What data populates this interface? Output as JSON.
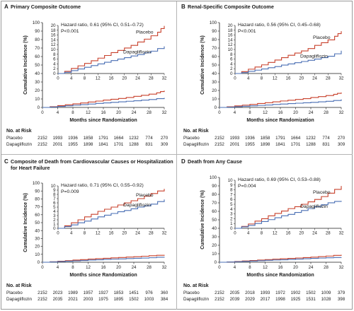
{
  "chart_data": [
    {
      "type": "line",
      "panel_letter": "A",
      "title_lines": [
        "Primary Composite Outcome"
      ],
      "annotation": [
        "Hazard ratio, 0.61 (95% CI, 0.51–0.72)",
        "P<0.001"
      ],
      "xlabel": "Months since Randomization",
      "ylabel": "Cumulative Incidence (%)",
      "xlim": [
        0,
        32
      ],
      "xticks": [
        "0",
        "4",
        "8",
        "12",
        "16",
        "20",
        "24",
        "28",
        "32"
      ],
      "main_ylim": [
        0,
        100
      ],
      "main_yticks": [
        "0",
        "10",
        "20",
        "30",
        "40",
        "50",
        "60",
        "70",
        "80",
        "90",
        "100"
      ],
      "inset_ylim": [
        0,
        20
      ],
      "inset_yticks": [
        "0",
        "2",
        "4",
        "6",
        "8",
        "10",
        "12",
        "14",
        "16",
        "18",
        "20"
      ],
      "series": [
        {
          "name": "Placebo",
          "color": "#c8402b",
          "x": [
            0,
            2,
            4,
            6,
            8,
            10,
            12,
            14,
            16,
            18,
            20,
            22,
            24,
            26,
            28,
            30,
            31,
            32
          ],
          "y": [
            0,
            0.9,
            2.1,
            3.2,
            4.2,
            5.3,
            6.4,
            7.5,
            8.7,
            9.6,
            10.6,
            11.7,
            13.1,
            14.3,
            15.7,
            17.2,
            18.7,
            19.8
          ]
        },
        {
          "name": "Dapagliflozin",
          "color": "#4a6fb4",
          "x": [
            0,
            2,
            4,
            6,
            8,
            10,
            12,
            14,
            16,
            18,
            20,
            22,
            24,
            26,
            28,
            30,
            32
          ],
          "y": [
            0,
            0.5,
            1.2,
            1.9,
            2.6,
            3.3,
            4.0,
            4.7,
            5.4,
            6.0,
            6.6,
            7.3,
            7.9,
            8.6,
            9.3,
            10.4,
            11.3
          ]
        }
      ],
      "number_at_risk": {
        "heading": "No. at Risk",
        "rows": [
          {
            "group": "Placebo",
            "values": [
              "2152",
              "1993",
              "1936",
              "1858",
              "1791",
              "1664",
              "1232",
              "774",
              "270"
            ]
          },
          {
            "group": "Dapagliflozin",
            "values": [
              "2152",
              "2001",
              "1955",
              "1898",
              "1841",
              "1701",
              "1288",
              "831",
              "309"
            ]
          }
        ]
      }
    },
    {
      "type": "line",
      "panel_letter": "B",
      "title_lines": [
        "Renal-Specific Composite Outcome"
      ],
      "annotation": [
        "Hazard ratio, 0.56 (95% CI, 0.45–0.68)",
        "P<0.001"
      ],
      "xlabel": "Months since Randomization",
      "ylabel": "Cumulative Incidence (%)",
      "xlim": [
        0,
        32
      ],
      "xticks": [
        "0",
        "4",
        "8",
        "12",
        "16",
        "20",
        "24",
        "28",
        "32"
      ],
      "main_ylim": [
        0,
        100
      ],
      "main_yticks": [
        "0",
        "10",
        "20",
        "30",
        "40",
        "50",
        "60",
        "70",
        "80",
        "90",
        "100"
      ],
      "inset_ylim": [
        0,
        20
      ],
      "inset_yticks": [
        "0",
        "2",
        "4",
        "6",
        "8",
        "10",
        "12",
        "14",
        "16",
        "18",
        "20"
      ],
      "series": [
        {
          "name": "Placebo",
          "color": "#c8402b",
          "x": [
            0,
            2,
            4,
            6,
            8,
            10,
            12,
            14,
            16,
            18,
            20,
            22,
            24,
            26,
            28,
            30,
            31,
            32
          ],
          "y": [
            0,
            0.8,
            1.8,
            2.7,
            3.6,
            4.6,
            5.6,
            6.6,
            7.6,
            8.5,
            9.4,
            10.4,
            11.7,
            12.8,
            14.0,
            15.5,
            16.6,
            17.6
          ]
        },
        {
          "name": "Dapagliflozin",
          "color": "#4a6fb4",
          "x": [
            0,
            2,
            4,
            6,
            8,
            10,
            12,
            14,
            16,
            18,
            20,
            22,
            24,
            26,
            28,
            30,
            32
          ],
          "y": [
            0,
            0.4,
            0.9,
            1.4,
            1.9,
            2.4,
            2.9,
            3.5,
            4.0,
            4.5,
            5.0,
            5.5,
            6.0,
            6.6,
            7.2,
            8.2,
            9.5
          ]
        }
      ],
      "number_at_risk": {
        "heading": "No. at Risk",
        "rows": [
          {
            "group": "Placebo",
            "values": [
              "2152",
              "1993",
              "1936",
              "1858",
              "1791",
              "1664",
              "1232",
              "774",
              "270"
            ]
          },
          {
            "group": "Dapagliflozin",
            "values": [
              "2152",
              "2001",
              "1955",
              "1898",
              "1841",
              "1701",
              "1288",
              "831",
              "309"
            ]
          }
        ]
      }
    },
    {
      "type": "line",
      "panel_letter": "C",
      "title_lines": [
        "Composite of Death from Cardiovascular Causes or Hospitalization",
        "for Heart Failure"
      ],
      "annotation": [
        "Hazard ratio, 0.71 (95% CI, 0.55–0.92)",
        "P=0.009"
      ],
      "xlabel": "Months since Randomization",
      "ylabel": "Cumulative Incidence (%)",
      "xlim": [
        0,
        32
      ],
      "xticks": [
        "0",
        "4",
        "8",
        "12",
        "16",
        "20",
        "24",
        "28",
        "32"
      ],
      "main_ylim": [
        0,
        100
      ],
      "main_yticks": [
        "0",
        "10",
        "20",
        "30",
        "40",
        "50",
        "60",
        "70",
        "80",
        "90",
        "100"
      ],
      "inset_ylim": [
        0,
        10
      ],
      "inset_yticks": [
        "0",
        "1",
        "2",
        "3",
        "4",
        "5",
        "6",
        "7",
        "8",
        "9",
        "10"
      ],
      "series": [
        {
          "name": "Placebo",
          "color": "#c8402b",
          "x": [
            0,
            2,
            4,
            6,
            8,
            10,
            12,
            14,
            16,
            18,
            20,
            22,
            24,
            26,
            28,
            30,
            32
          ],
          "y": [
            0,
            0.6,
            1.3,
            2.0,
            2.7,
            3.3,
            4.0,
            4.5,
            5.0,
            5.5,
            6.0,
            6.5,
            7.0,
            7.6,
            8.2,
            8.8,
            9.3
          ]
        },
        {
          "name": "Dapagliflozin",
          "color": "#4a6fb4",
          "x": [
            0,
            2,
            4,
            6,
            8,
            10,
            12,
            14,
            16,
            18,
            20,
            22,
            24,
            26,
            28,
            30,
            32
          ],
          "y": [
            0,
            0.4,
            0.8,
            1.3,
            1.7,
            2.2,
            2.7,
            3.1,
            3.5,
            3.9,
            4.2,
            4.6,
            5.0,
            5.3,
            5.7,
            6.3,
            6.8
          ]
        }
      ],
      "number_at_risk": {
        "heading": "No. at Risk",
        "rows": [
          {
            "group": "Placebo",
            "values": [
              "2152",
              "2023",
              "1989",
              "1957",
              "1927",
              "1853",
              "1451",
              "976",
              "360"
            ]
          },
          {
            "group": "Dapagliflozin",
            "values": [
              "2152",
              "2035",
              "2021",
              "2003",
              "1975",
              "1895",
              "1502",
              "1003",
              "384"
            ]
          }
        ]
      }
    },
    {
      "type": "line",
      "panel_letter": "D",
      "title_lines": [
        "Death from Any Cause"
      ],
      "annotation": [
        "Hazard ratio, 0.69 (95% CI, 0.53–0.88)",
        "P=0.004"
      ],
      "xlabel": "Months since Randomization",
      "ylabel": "Cumulative Incidence (%)",
      "xlim": [
        0,
        32
      ],
      "xticks": [
        "0",
        "4",
        "8",
        "12",
        "16",
        "20",
        "24",
        "28",
        "32"
      ],
      "main_ylim": [
        0,
        100
      ],
      "main_yticks": [
        "0",
        "10",
        "20",
        "30",
        "40",
        "50",
        "60",
        "70",
        "80",
        "90",
        "100"
      ],
      "inset_ylim": [
        0,
        10
      ],
      "inset_yticks": [
        "0",
        "1",
        "2",
        "3",
        "4",
        "5",
        "6",
        "7",
        "8",
        "9",
        "10"
      ],
      "series": [
        {
          "name": "Placebo",
          "color": "#c8402b",
          "x": [
            0,
            2,
            4,
            6,
            8,
            10,
            12,
            14,
            16,
            18,
            20,
            22,
            24,
            26,
            28,
            30,
            32
          ],
          "y": [
            0,
            0.4,
            0.9,
            1.5,
            2.0,
            2.6,
            3.1,
            3.6,
            4.1,
            4.5,
            5.0,
            5.5,
            6.0,
            6.6,
            7.3,
            8.1,
            8.8
          ]
        },
        {
          "name": "Dapagliflozin",
          "color": "#4a6fb4",
          "x": [
            0,
            2,
            4,
            6,
            8,
            10,
            12,
            14,
            16,
            18,
            20,
            22,
            24,
            26,
            28,
            30,
            32
          ],
          "y": [
            0,
            0.3,
            0.6,
            1.0,
            1.4,
            1.8,
            2.2,
            2.6,
            2.9,
            3.3,
            3.7,
            4.1,
            4.5,
            4.9,
            5.3,
            5.6,
            5.7
          ]
        }
      ],
      "number_at_risk": {
        "heading": "No. at Risk",
        "rows": [
          {
            "group": "Placebo",
            "values": [
              "2152",
              "2035",
              "2018",
              "1993",
              "1972",
              "1902",
              "1502",
              "1009",
              "379"
            ]
          },
          {
            "group": "Dapagliflozin",
            "values": [
              "2152",
              "2039",
              "2029",
              "2017",
              "1998",
              "1925",
              "1531",
              "1028",
              "398"
            ]
          }
        ]
      }
    }
  ]
}
